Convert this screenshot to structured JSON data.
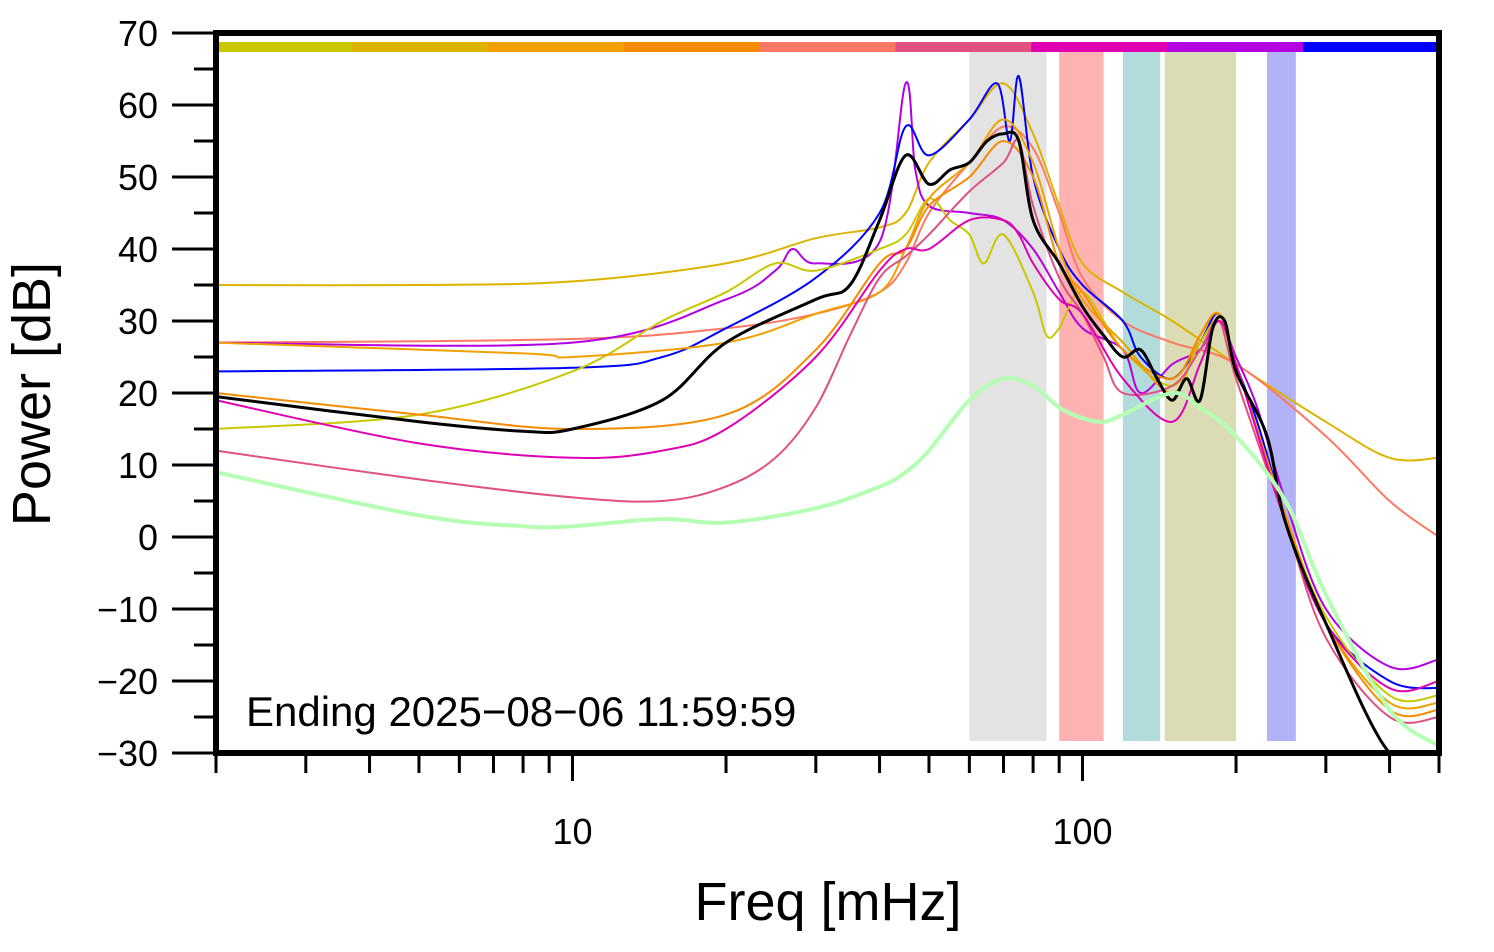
{
  "chart_data": {
    "type": "line",
    "title": "",
    "xlabel": "Freq [mHz]",
    "ylabel": "Power [dB]",
    "xscale": "log",
    "xlim": [
      2,
      500
    ],
    "ylim": [
      -30,
      70
    ],
    "x_tick_labels": [
      {
        "value": 10,
        "label": "10"
      },
      {
        "value": 100,
        "label": "100"
      }
    ],
    "y_ticks": [
      {
        "value": 70,
        "label": "70"
      },
      {
        "value": 60,
        "label": "60"
      },
      {
        "value": 50,
        "label": "50"
      },
      {
        "value": 40,
        "label": "40"
      },
      {
        "value": 30,
        "label": "30"
      },
      {
        "value": 20,
        "label": "20"
      },
      {
        "value": 10,
        "label": "10"
      },
      {
        "value": 0,
        "label": "0"
      },
      {
        "value": -10,
        "label": "−10"
      },
      {
        "value": -20,
        "label": "−20"
      },
      {
        "value": -30,
        "label": "−30"
      }
    ],
    "annotation": "Ending 2025−08−06 11:59:59",
    "grid": false,
    "top_color_bar": [
      "#c8c800",
      "#dcb400",
      "#f0a000",
      "#f58c00",
      "#ff7864",
      "#e05080",
      "#e000b4",
      "#b400e0",
      "#0000ff"
    ],
    "bands": [
      {
        "from": 60,
        "to": 85,
        "color": "#e3e3e3"
      },
      {
        "from": 90,
        "to": 110,
        "color": "#ffb2b2"
      },
      {
        "from": 120,
        "to": 142,
        "color": "#b2dcdc"
      },
      {
        "from": 145,
        "to": 200,
        "color": "#dcdcb4"
      },
      {
        "from": 230,
        "to": 262,
        "color": "#b2b2f8"
      }
    ],
    "series": [
      {
        "color": "#dcb400",
        "width": 2,
        "points": [
          [
            2,
            35
          ],
          [
            5,
            35
          ],
          [
            10,
            35.5
          ],
          [
            20,
            38
          ],
          [
            30,
            41.5
          ],
          [
            40,
            43
          ],
          [
            45,
            45
          ],
          [
            50,
            52
          ],
          [
            60,
            58
          ],
          [
            70,
            63
          ],
          [
            80,
            56
          ],
          [
            90,
            46
          ],
          [
            100,
            38
          ],
          [
            120,
            34
          ],
          [
            150,
            30
          ],
          [
            200,
            24
          ],
          [
            300,
            16
          ],
          [
            400,
            11
          ],
          [
            500,
            11
          ]
        ]
      },
      {
        "color": "#ff7864",
        "width": 2,
        "points": [
          [
            2,
            27
          ],
          [
            10,
            27.5
          ],
          [
            20,
            29
          ],
          [
            30,
            31
          ],
          [
            40,
            34
          ],
          [
            45,
            38
          ],
          [
            50,
            45
          ],
          [
            60,
            52
          ],
          [
            70,
            57
          ],
          [
            80,
            54
          ],
          [
            90,
            45
          ],
          [
            100,
            36
          ],
          [
            120,
            30
          ],
          [
            150,
            27
          ],
          [
            200,
            24
          ],
          [
            300,
            14
          ],
          [
            400,
            5
          ],
          [
            500,
            0
          ]
        ]
      },
      {
        "color": "#b400e0",
        "width": 2,
        "points": [
          [
            2,
            27
          ],
          [
            10,
            27
          ],
          [
            20,
            33
          ],
          [
            25,
            37
          ],
          [
            27,
            40
          ],
          [
            30,
            38
          ],
          [
            40,
            41
          ],
          [
            45,
            63
          ],
          [
            47,
            51
          ],
          [
            50,
            46
          ],
          [
            60,
            45
          ],
          [
            70,
            44
          ],
          [
            80,
            40
          ],
          [
            90,
            34
          ],
          [
            100,
            29
          ],
          [
            120,
            26
          ],
          [
            130,
            20
          ],
          [
            150,
            24
          ],
          [
            170,
            26
          ],
          [
            185,
            30
          ],
          [
            200,
            25
          ],
          [
            220,
            18
          ],
          [
            250,
            5
          ],
          [
            300,
            -10
          ],
          [
            400,
            -18
          ],
          [
            500,
            -17
          ]
        ]
      },
      {
        "color": "#0000ff",
        "width": 2,
        "points": [
          [
            2,
            23
          ],
          [
            10,
            23.5
          ],
          [
            15,
            25
          ],
          [
            20,
            29
          ],
          [
            30,
            36
          ],
          [
            40,
            45
          ],
          [
            45,
            57
          ],
          [
            50,
            53
          ],
          [
            60,
            58
          ],
          [
            68,
            63
          ],
          [
            72,
            55
          ],
          [
            75,
            64
          ],
          [
            80,
            50
          ],
          [
            90,
            40
          ],
          [
            100,
            35
          ],
          [
            120,
            30
          ],
          [
            130,
            25
          ],
          [
            150,
            22
          ],
          [
            170,
            27
          ],
          [
            185,
            31
          ],
          [
            200,
            24
          ],
          [
            220,
            16
          ],
          [
            250,
            3
          ],
          [
            300,
            -12
          ],
          [
            400,
            -20
          ],
          [
            500,
            -21
          ]
        ]
      },
      {
        "color": "#c8c800",
        "width": 2,
        "points": [
          [
            2,
            15
          ],
          [
            5,
            17
          ],
          [
            10,
            23
          ],
          [
            15,
            30
          ],
          [
            20,
            34
          ],
          [
            25,
            38
          ],
          [
            30,
            37
          ],
          [
            40,
            40
          ],
          [
            45,
            42
          ],
          [
            50,
            47
          ],
          [
            55,
            44
          ],
          [
            60,
            42
          ],
          [
            64,
            38
          ],
          [
            70,
            42
          ],
          [
            80,
            34
          ],
          [
            85,
            28
          ],
          [
            90,
            29
          ],
          [
            100,
            34
          ],
          [
            120,
            26
          ],
          [
            150,
            21
          ],
          [
            170,
            27
          ],
          [
            185,
            30
          ],
          [
            200,
            24
          ],
          [
            250,
            3
          ],
          [
            300,
            -11
          ],
          [
            400,
            -22
          ],
          [
            500,
            -22
          ]
        ]
      },
      {
        "color": "#f0a000",
        "width": 2,
        "points": [
          [
            2,
            27
          ],
          [
            8,
            25.5
          ],
          [
            10,
            25
          ],
          [
            20,
            27
          ],
          [
            30,
            31
          ],
          [
            40,
            34
          ],
          [
            45,
            40
          ],
          [
            50,
            47
          ],
          [
            60,
            52
          ],
          [
            70,
            58
          ],
          [
            80,
            52
          ],
          [
            90,
            40
          ],
          [
            100,
            33
          ],
          [
            120,
            27
          ],
          [
            150,
            20
          ],
          [
            170,
            28
          ],
          [
            185,
            31
          ],
          [
            200,
            24
          ],
          [
            250,
            3
          ],
          [
            300,
            -12
          ],
          [
            400,
            -23
          ],
          [
            500,
            -23
          ]
        ]
      },
      {
        "color": "#f58c00",
        "width": 2,
        "points": [
          [
            2,
            20
          ],
          [
            5,
            17
          ],
          [
            10,
            15
          ],
          [
            20,
            17
          ],
          [
            30,
            26
          ],
          [
            40,
            38
          ],
          [
            45,
            40
          ],
          [
            50,
            46
          ],
          [
            60,
            50
          ],
          [
            70,
            55
          ],
          [
            80,
            50
          ],
          [
            90,
            38
          ],
          [
            100,
            34
          ],
          [
            120,
            26
          ],
          [
            150,
            22
          ],
          [
            170,
            28
          ],
          [
            185,
            31
          ],
          [
            200,
            24
          ],
          [
            250,
            3
          ],
          [
            300,
            -12
          ],
          [
            400,
            -24
          ],
          [
            500,
            -24
          ]
        ]
      },
      {
        "color": "#e05080",
        "width": 2,
        "points": [
          [
            2,
            12
          ],
          [
            5,
            8
          ],
          [
            10,
            5.5
          ],
          [
            15,
            5
          ],
          [
            20,
            7
          ],
          [
            25,
            11
          ],
          [
            30,
            18
          ],
          [
            35,
            28
          ],
          [
            40,
            36
          ],
          [
            45,
            39
          ],
          [
            50,
            42
          ],
          [
            60,
            48
          ],
          [
            70,
            52
          ],
          [
            75,
            55
          ],
          [
            80,
            46
          ],
          [
            90,
            36
          ],
          [
            100,
            31
          ],
          [
            110,
            25
          ],
          [
            120,
            20
          ],
          [
            150,
            21
          ],
          [
            170,
            26
          ],
          [
            185,
            30
          ],
          [
            200,
            22
          ],
          [
            250,
            2
          ],
          [
            300,
            -14
          ],
          [
            400,
            -25
          ],
          [
            500,
            -25
          ]
        ]
      },
      {
        "color": "#e000b4",
        "width": 2,
        "points": [
          [
            2,
            19
          ],
          [
            5,
            13
          ],
          [
            10,
            11
          ],
          [
            15,
            12
          ],
          [
            20,
            15
          ],
          [
            30,
            25
          ],
          [
            40,
            37
          ],
          [
            45,
            40
          ],
          [
            50,
            40
          ],
          [
            60,
            44
          ],
          [
            70,
            44
          ],
          [
            75,
            42
          ],
          [
            80,
            38
          ],
          [
            90,
            33
          ],
          [
            100,
            31
          ],
          [
            120,
            22
          ],
          [
            150,
            16
          ],
          [
            170,
            24
          ],
          [
            185,
            30
          ],
          [
            200,
            24
          ],
          [
            250,
            2
          ],
          [
            300,
            -12
          ],
          [
            400,
            -21
          ],
          [
            500,
            -20
          ]
        ]
      },
      {
        "color": "#000000",
        "width": 3,
        "points": [
          [
            2,
            19.5
          ],
          [
            5,
            16
          ],
          [
            8,
            14.7
          ],
          [
            10,
            15
          ],
          [
            15,
            19
          ],
          [
            20,
            27
          ],
          [
            30,
            33
          ],
          [
            35,
            35
          ],
          [
            40,
            44
          ],
          [
            45,
            53
          ],
          [
            50,
            49
          ],
          [
            55,
            51
          ],
          [
            60,
            52
          ],
          [
            65,
            55
          ],
          [
            70,
            56
          ],
          [
            75,
            55
          ],
          [
            80,
            44
          ],
          [
            90,
            38
          ],
          [
            100,
            32
          ],
          [
            110,
            28
          ],
          [
            120,
            25
          ],
          [
            130,
            26
          ],
          [
            140,
            22
          ],
          [
            150,
            19
          ],
          [
            160,
            22
          ],
          [
            170,
            19
          ],
          [
            180,
            29
          ],
          [
            190,
            30
          ],
          [
            200,
            23
          ],
          [
            230,
            14
          ],
          [
            250,
            2
          ],
          [
            300,
            -12
          ],
          [
            400,
            -30
          ],
          [
            500,
            -30
          ]
        ]
      },
      {
        "color": "#b4ffb4",
        "width": 4,
        "points": [
          [
            2,
            9
          ],
          [
            5,
            3
          ],
          [
            8,
            1.5
          ],
          [
            10,
            1.5
          ],
          [
            15,
            2.5
          ],
          [
            20,
            2
          ],
          [
            30,
            4
          ],
          [
            40,
            7
          ],
          [
            45,
            9
          ],
          [
            50,
            12
          ],
          [
            60,
            19
          ],
          [
            70,
            22
          ],
          [
            80,
            21
          ],
          [
            90,
            18
          ],
          [
            100,
            16.5
          ],
          [
            110,
            16
          ],
          [
            120,
            17
          ],
          [
            150,
            20
          ],
          [
            170,
            18
          ],
          [
            200,
            14
          ],
          [
            250,
            5
          ],
          [
            300,
            -8
          ],
          [
            400,
            -24
          ],
          [
            500,
            -29
          ]
        ]
      }
    ]
  }
}
